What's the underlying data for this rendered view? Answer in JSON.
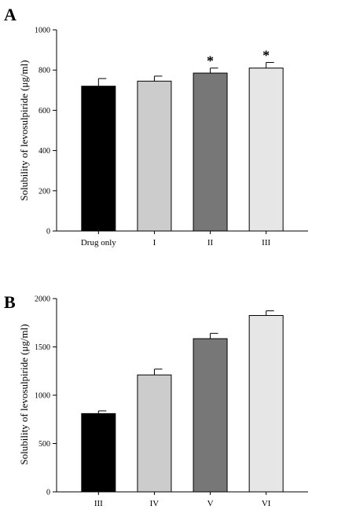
{
  "chart_data": [
    {
      "panel_label": "A",
      "type": "bar",
      "ylabel": "Solubility of levosulpiride (μg/ml)",
      "categories": [
        "Drug only",
        "I",
        "II",
        "III"
      ],
      "values": [
        720,
        745,
        785,
        810
      ],
      "errors": [
        38,
        25,
        25,
        28
      ],
      "significance": [
        "",
        "",
        "*",
        "*"
      ],
      "colors": [
        "#000000",
        "#cccccc",
        "#777777",
        "#e6e6e6"
      ],
      "ylim": [
        0,
        1000
      ],
      "yticks": [
        0,
        200,
        400,
        600,
        800,
        1000
      ],
      "grid": false,
      "legend": "none"
    },
    {
      "panel_label": "B",
      "type": "bar",
      "ylabel": "Solubility of levosulpiride (μg/ml)",
      "categories": [
        "III",
        "IV",
        "V",
        "VI"
      ],
      "values": [
        810,
        1210,
        1585,
        1825
      ],
      "errors": [
        28,
        60,
        55,
        48
      ],
      "significance": [
        "",
        "",
        "",
        ""
      ],
      "colors": [
        "#000000",
        "#cccccc",
        "#777777",
        "#e6e6e6"
      ],
      "ylim": [
        0,
        2000
      ],
      "yticks": [
        0,
        500,
        1000,
        1500,
        2000
      ],
      "grid": false,
      "legend": "none"
    }
  ]
}
